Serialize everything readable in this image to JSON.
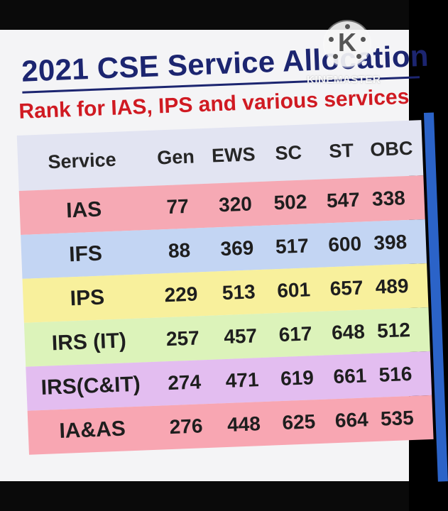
{
  "title": "2021 CSE Service Allocation",
  "subtitle": "Rank for IAS, IPS and various services",
  "watermark": "KINEMASTER",
  "watermark_logo": "K",
  "table": {
    "headers": [
      "Service",
      "Gen",
      "EWS",
      "SC",
      "ST",
      "OBC"
    ],
    "rows": [
      {
        "service": "IAS",
        "values": [
          "77",
          "320",
          "502",
          "547",
          "338"
        ],
        "color": "#f6a9b4"
      },
      {
        "service": "IFS",
        "values": [
          "88",
          "369",
          "517",
          "600",
          "398"
        ],
        "color": "#c3d5f3"
      },
      {
        "service": "IPS",
        "values": [
          "229",
          "513",
          "601",
          "657",
          "489"
        ],
        "color": "#f8f09c"
      },
      {
        "service": "IRS (IT)",
        "values": [
          "257",
          "457",
          "617",
          "648",
          "512"
        ],
        "color": "#dcf3ba"
      },
      {
        "service": "IRS(C&IT)",
        "values": [
          "274",
          "471",
          "619",
          "661",
          "516"
        ],
        "color": "#e3bdf0"
      },
      {
        "service": "IA&AS",
        "values": [
          "276",
          "448",
          "625",
          "664",
          "535"
        ],
        "color": "#f8a6b2"
      }
    ]
  },
  "colors": {
    "title": "#1c2570",
    "subtitle": "#d01a22",
    "header_bg": "#e2e4f2"
  }
}
